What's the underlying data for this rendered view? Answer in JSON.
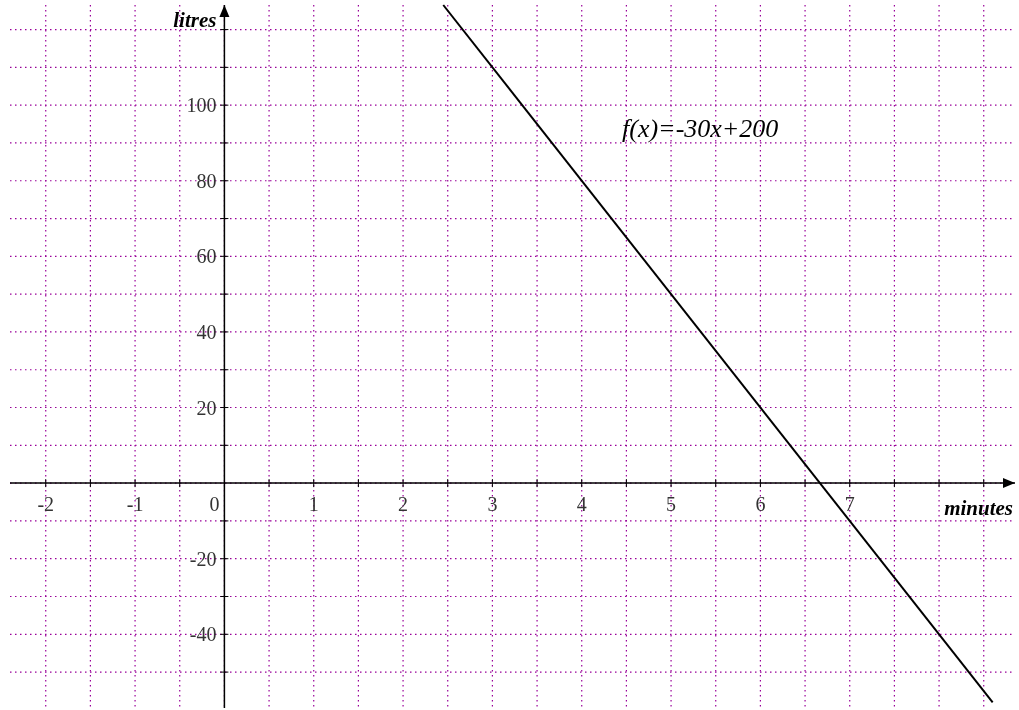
{
  "chart_data": {
    "type": "line",
    "xlabel": "minutes",
    "ylabel": "litres",
    "annotations": [
      "f(x)=-30x+200"
    ],
    "series": [
      {
        "x": [
          2.45,
          8.6
        ],
        "values": [
          126.5,
          -58
        ],
        "color": "#000000"
      }
    ],
    "xlim": [
      -2.4,
      8.85
    ],
    "ylim": [
      -59.5,
      126.5
    ],
    "xticks": [
      -2,
      {
        "value": -1.5,
        "label": null
      },
      -1,
      {
        "value": -0.5,
        "label": null
      },
      0,
      {
        "value": 0.5,
        "label": null
      },
      1,
      {
        "value": 1.5,
        "label": null
      },
      2,
      {
        "value": 2.5,
        "label": null
      },
      3,
      {
        "value": 3.5,
        "label": null
      },
      4,
      {
        "value": 4.5,
        "label": null
      },
      5,
      {
        "value": 5.5,
        "label": null
      },
      6,
      {
        "value": 6.5,
        "label": null
      },
      7,
      {
        "value": 7.5,
        "label": null
      },
      {
        "value": 8,
        "label": null
      },
      {
        "value": 8.5,
        "label": null
      }
    ],
    "yticks": [
      {
        "value": -50,
        "label": null
      },
      -40,
      {
        "value": -30,
        "label": null
      },
      -20,
      {
        "value": -10,
        "label": null
      },
      {
        "value": 0,
        "label": null
      },
      {
        "value": 10,
        "label": null
      },
      20,
      {
        "value": 30,
        "label": null
      },
      40,
      {
        "value": 50,
        "label": null
      },
      60,
      {
        "value": 70,
        "label": null
      },
      80,
      {
        "value": 90,
        "label": null
      },
      100,
      {
        "value": 110,
        "label": null
      },
      {
        "value": 120,
        "label": null
      }
    ],
    "grid": true,
    "marker": "none",
    "line_style": "solid"
  }
}
